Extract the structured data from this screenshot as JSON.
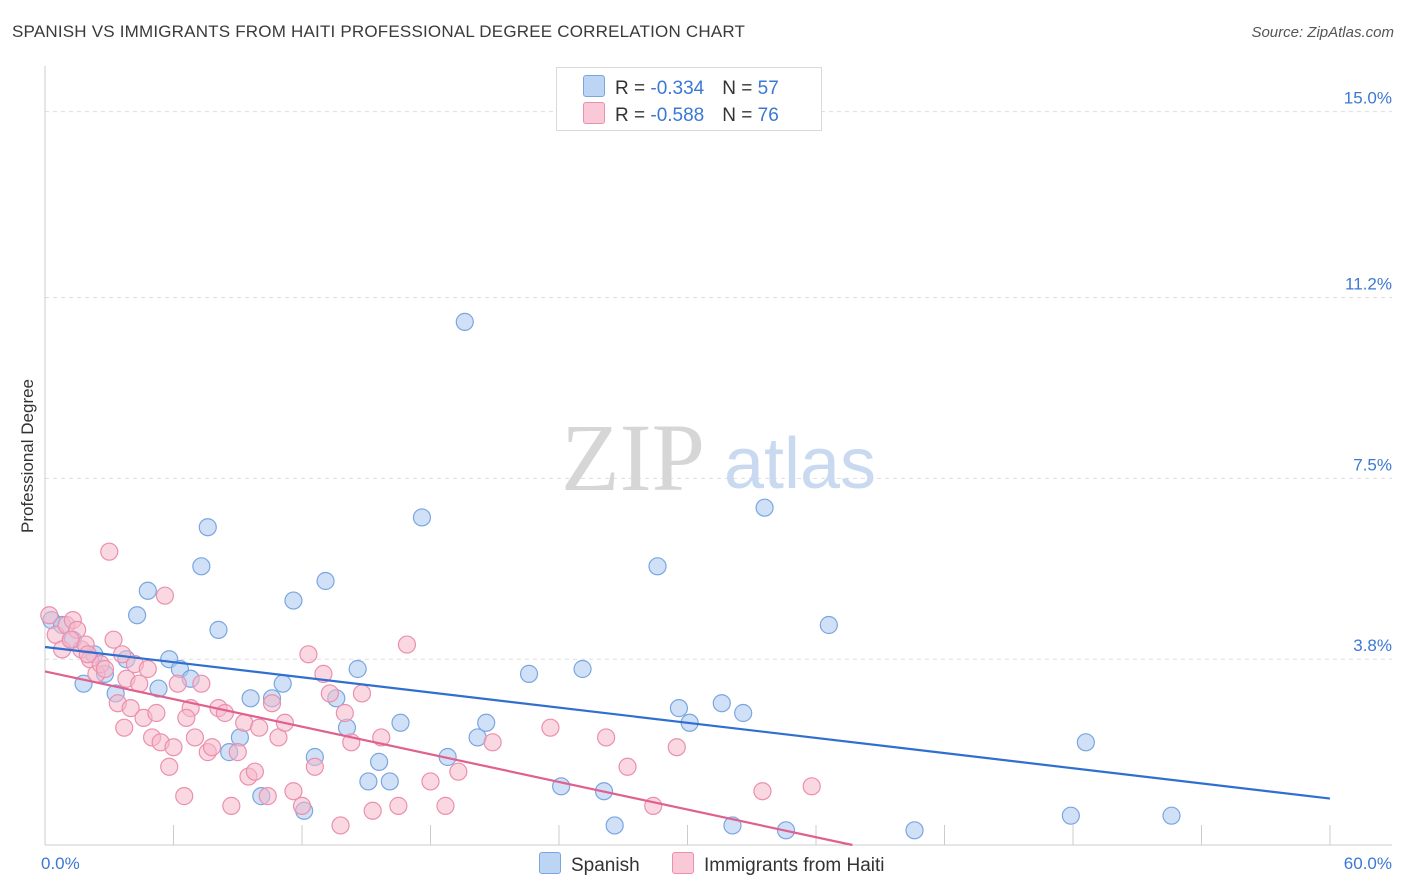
{
  "title": "SPANISH VS IMMIGRANTS FROM HAITI PROFESSIONAL DEGREE CORRELATION CHART",
  "source": "Source: ZipAtlas.com",
  "watermark": {
    "zip": "ZIP",
    "atlas": "atlas"
  },
  "colors": {
    "spanish_fill": "#aac8f0",
    "spanish_stroke": "#7aa6e0",
    "spanish_line": "#2f6fcf",
    "haiti_fill": "#f6b8cb",
    "haiti_stroke": "#ec8fae",
    "haiti_line": "#e0608f",
    "axis_text": "#3b78d4",
    "grid": "#dddddd"
  },
  "legend": {
    "rows": [
      {
        "r_label": "R = ",
        "r_value": "-0.334",
        "n_label": "N = ",
        "n_value": "57"
      },
      {
        "r_label": "R = ",
        "r_value": "-0.588",
        "n_label": "N = ",
        "n_value": "76"
      }
    ]
  },
  "bottom_legend": {
    "spanish": "Spanish",
    "haiti": "Immigrants from Haiti"
  },
  "chart_data": {
    "type": "scatter",
    "title": "SPANISH VS IMMIGRANTS FROM HAITI PROFESSIONAL DEGREE CORRELATION CHART",
    "xlabel": "",
    "ylabel": "Professional Degree",
    "xlim": [
      0,
      60
    ],
    "ylim": [
      0,
      15.75
    ],
    "x_tick_labels": [
      {
        "value": 0,
        "label": "0.0%"
      },
      {
        "value": 60,
        "label": "60.0%"
      }
    ],
    "y_tick_labels": [
      {
        "value": 3.8,
        "label": "3.8%"
      },
      {
        "value": 7.5,
        "label": "7.5%"
      },
      {
        "value": 11.2,
        "label": "11.2%"
      },
      {
        "value": 15.0,
        "label": "15.0%"
      }
    ],
    "grid": true,
    "series": [
      {
        "name": "Spanish",
        "R": -0.334,
        "N": 57,
        "trend": {
          "x": [
            0,
            60
          ],
          "y": [
            4.05,
            0.95
          ]
        },
        "points": [
          [
            0.3,
            4.6
          ],
          [
            0.8,
            4.5
          ],
          [
            1.3,
            4.2
          ],
          [
            1.8,
            3.3
          ],
          [
            2.3,
            3.9
          ],
          [
            2.8,
            3.5
          ],
          [
            3.3,
            3.1
          ],
          [
            3.8,
            3.8
          ],
          [
            4.3,
            4.7
          ],
          [
            4.8,
            5.2
          ],
          [
            5.3,
            3.2
          ],
          [
            5.8,
            3.8
          ],
          [
            6.3,
            3.6
          ],
          [
            6.8,
            3.4
          ],
          [
            7.3,
            5.7
          ],
          [
            7.6,
            6.5
          ],
          [
            8.1,
            4.4
          ],
          [
            8.6,
            1.9
          ],
          [
            9.1,
            2.2
          ],
          [
            9.6,
            3.0
          ],
          [
            10.1,
            1.0
          ],
          [
            10.6,
            3.0
          ],
          [
            11.1,
            3.3
          ],
          [
            11.6,
            5.0
          ],
          [
            12.1,
            0.7
          ],
          [
            12.6,
            1.8
          ],
          [
            13.1,
            5.4
          ],
          [
            13.6,
            3.0
          ],
          [
            14.1,
            2.4
          ],
          [
            14.6,
            3.6
          ],
          [
            15.1,
            1.3
          ],
          [
            15.6,
            1.7
          ],
          [
            16.1,
            1.3
          ],
          [
            16.6,
            2.5
          ],
          [
            17.6,
            6.7
          ],
          [
            18.8,
            1.8
          ],
          [
            19.6,
            10.7
          ],
          [
            20.2,
            2.2
          ],
          [
            20.6,
            2.5
          ],
          [
            22.6,
            3.5
          ],
          [
            24.1,
            1.2
          ],
          [
            25.1,
            3.6
          ],
          [
            26.1,
            1.1
          ],
          [
            26.6,
            0.4
          ],
          [
            28.6,
            5.7
          ],
          [
            29.6,
            2.8
          ],
          [
            30.1,
            2.5
          ],
          [
            31.6,
            2.9
          ],
          [
            32.1,
            0.4
          ],
          [
            32.6,
            2.7
          ],
          [
            33.6,
            6.9
          ],
          [
            34.6,
            0.3
          ],
          [
            36.6,
            4.5
          ],
          [
            40.6,
            0.3
          ],
          [
            48.6,
            2.1
          ],
          [
            47.9,
            0.6
          ],
          [
            52.6,
            0.6
          ]
        ]
      },
      {
        "name": "Immigrants from Haiti",
        "R": -0.588,
        "N": 76,
        "trend": {
          "x": [
            0,
            37.7
          ],
          "y": [
            3.55,
            0.0
          ]
        },
        "points": [
          [
            0.2,
            4.7
          ],
          [
            0.5,
            4.3
          ],
          [
            0.8,
            4.0
          ],
          [
            1.0,
            4.5
          ],
          [
            1.3,
            4.6
          ],
          [
            1.5,
            4.4
          ],
          [
            1.7,
            4.0
          ],
          [
            1.9,
            4.1
          ],
          [
            2.1,
            3.8
          ],
          [
            2.4,
            3.5
          ],
          [
            2.6,
            3.7
          ],
          [
            2.8,
            3.6
          ],
          [
            3.0,
            6.0
          ],
          [
            3.2,
            4.2
          ],
          [
            3.4,
            2.9
          ],
          [
            3.6,
            3.9
          ],
          [
            3.8,
            3.4
          ],
          [
            4.0,
            2.8
          ],
          [
            4.2,
            3.7
          ],
          [
            4.4,
            3.3
          ],
          [
            4.6,
            2.6
          ],
          [
            4.8,
            3.6
          ],
          [
            5.0,
            2.2
          ],
          [
            5.2,
            2.7
          ],
          [
            5.4,
            2.1
          ],
          [
            5.6,
            5.1
          ],
          [
            5.8,
            1.6
          ],
          [
            6.0,
            2.0
          ],
          [
            6.2,
            3.3
          ],
          [
            6.5,
            1.0
          ],
          [
            6.8,
            2.8
          ],
          [
            7.0,
            2.2
          ],
          [
            7.3,
            3.3
          ],
          [
            7.6,
            1.9
          ],
          [
            7.8,
            2.0
          ],
          [
            8.1,
            2.8
          ],
          [
            8.4,
            2.7
          ],
          [
            8.7,
            0.8
          ],
          [
            9.0,
            1.9
          ],
          [
            9.3,
            2.5
          ],
          [
            9.5,
            1.4
          ],
          [
            9.8,
            1.5
          ],
          [
            10.0,
            2.4
          ],
          [
            10.4,
            1.0
          ],
          [
            10.6,
            2.9
          ],
          [
            10.9,
            2.2
          ],
          [
            11.2,
            2.5
          ],
          [
            11.6,
            1.1
          ],
          [
            12.0,
            0.8
          ],
          [
            12.3,
            3.9
          ],
          [
            12.6,
            1.6
          ],
          [
            13.0,
            3.5
          ],
          [
            13.3,
            3.1
          ],
          [
            13.8,
            0.4
          ],
          [
            14.0,
            2.7
          ],
          [
            14.3,
            2.1
          ],
          [
            14.8,
            3.1
          ],
          [
            15.3,
            0.7
          ],
          [
            15.7,
            2.2
          ],
          [
            16.5,
            0.8
          ],
          [
            16.9,
            4.1
          ],
          [
            18.0,
            1.3
          ],
          [
            18.7,
            0.8
          ],
          [
            19.3,
            1.5
          ],
          [
            20.9,
            2.1
          ],
          [
            23.6,
            2.4
          ],
          [
            26.2,
            2.2
          ],
          [
            27.2,
            1.6
          ],
          [
            28.4,
            0.8
          ],
          [
            29.5,
            2.0
          ],
          [
            33.5,
            1.1
          ],
          [
            35.8,
            1.2
          ],
          [
            1.2,
            4.2
          ],
          [
            2.0,
            3.9
          ],
          [
            3.7,
            2.4
          ],
          [
            6.6,
            2.6
          ]
        ]
      }
    ]
  }
}
